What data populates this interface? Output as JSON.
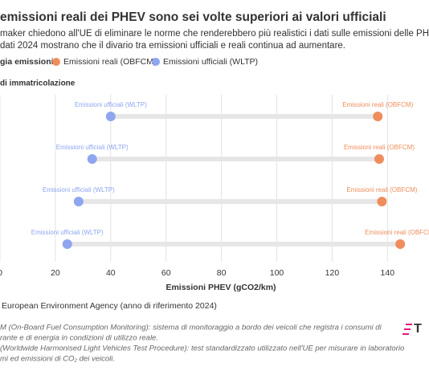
{
  "chart_data": {
    "type": "dumbbell",
    "title": "emissioni reali dei PHEV sono sei volte superiori ai valori ufficiali",
    "subtitle": [
      "maker chiedono all'UE di eliminare le norme che renderebbero più realistici i dati sulle emissioni delle PHEV, ma",
      "dati 2024 mostrano che il divario tra emissioni ufficiali e reali continua ad aumentare."
    ],
    "legend_title": "gia emissioni",
    "y_label": "di immatricolazione",
    "x_label": "Emissioni PHEV (gCO2/km)",
    "categories": [
      null,
      null,
      null,
      null
    ],
    "series": [
      {
        "name": "Emissioni reali (OBFCM)",
        "color": "#ef8d5c",
        "values": [
          136.5,
          137,
          138,
          144.6
        ]
      },
      {
        "name": "Emissioni ufficiali (WLTP)",
        "color": "#8ea6ef",
        "values": [
          40,
          33.3,
          28.4,
          24.3
        ]
      }
    ],
    "xlim": [
      0,
      155
    ],
    "xticks": [
      0,
      20,
      40,
      60,
      80,
      100,
      120,
      140
    ],
    "grid": true,
    "source": "European Environment Agency (anno di riferimento 2024)",
    "notes": [
      "M (On-Board Fuel Consumption Monitoring): sistema di monitoraggio a bordo dei veicoli che registra i consumi di",
      "rante e di energia in condizioni di utilizzo reale.",
      "(Worldwide Harmonised Light Vehicles Test Procedure): test standardizzato utilizzato nell'UE per misurare in laboratorio",
      "mi ed emissioni di CO₂ dei veicoli."
    ],
    "logo": "T"
  }
}
